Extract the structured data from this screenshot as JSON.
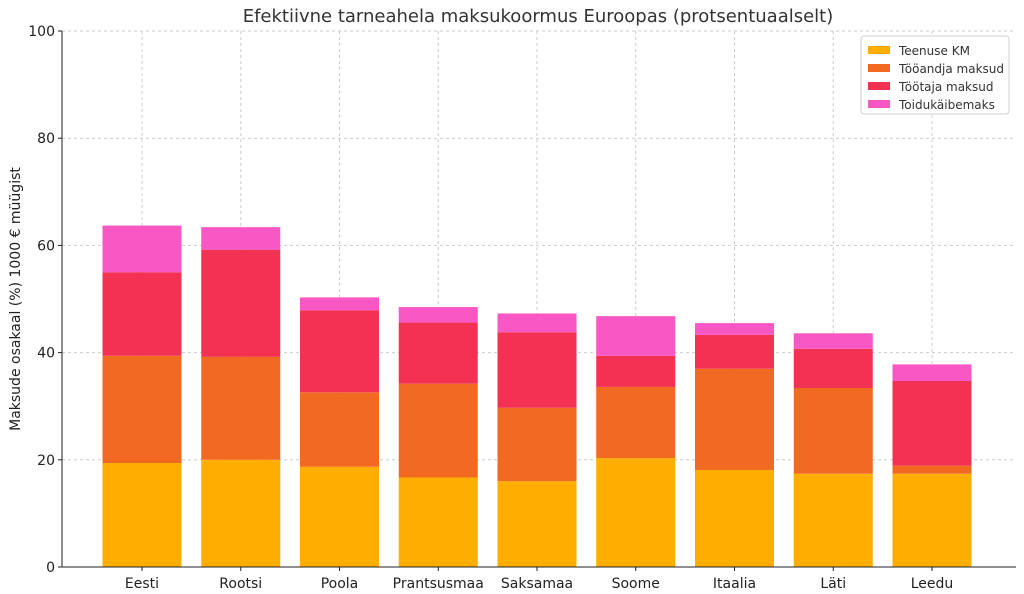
{
  "chart_data": {
    "type": "bar",
    "stacked": true,
    "title": "Efektiivne tarneahela maksukoormus Euroopas (protsentuaalselt)",
    "xlabel": "",
    "ylabel": "Maksude osakaal (%) 1000 € müügist",
    "ylim": [
      0,
      100
    ],
    "yticks": [
      "0",
      "20",
      "40",
      "60",
      "80",
      "100"
    ],
    "ytick_values": [
      0,
      20,
      40,
      60,
      80,
      100
    ],
    "grid": true,
    "legend_position": "top-right",
    "categories": [
      "Eesti",
      "Rootsi",
      "Poola",
      "Prantsusmaa",
      "Saksamaa",
      "Soome",
      "Itaalia",
      "Läti",
      "Leedu"
    ],
    "series": [
      {
        "name": "Teenuse KM",
        "color": "#ffae00",
        "values": [
          19.4,
          20.0,
          18.7,
          16.7,
          16.0,
          20.3,
          18.1,
          17.4,
          17.4
        ]
      },
      {
        "name": "Tööandja maksud",
        "color": "#f26a21",
        "values": [
          20.0,
          19.2,
          13.9,
          17.5,
          13.7,
          13.3,
          18.9,
          16.0,
          1.5
        ]
      },
      {
        "name": "Töötaja maksud",
        "color": "#f23153",
        "values": [
          15.6,
          20.0,
          15.3,
          11.4,
          14.1,
          5.8,
          6.3,
          7.3,
          15.8
        ]
      },
      {
        "name": "Toidukäibemaks",
        "color": "#f857c4",
        "values": [
          8.7,
          4.2,
          2.4,
          2.9,
          3.5,
          7.4,
          2.2,
          2.9,
          3.1
        ]
      }
    ]
  }
}
